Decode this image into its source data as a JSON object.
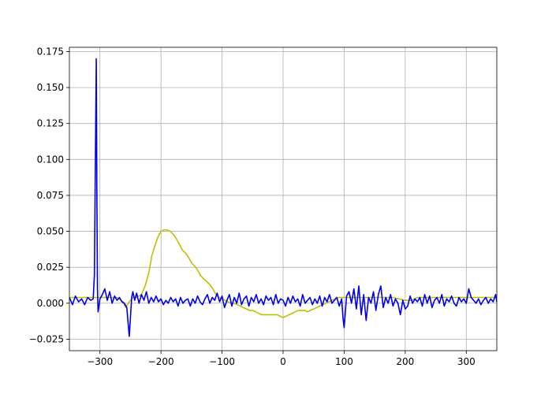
{
  "chart_data": {
    "type": "line",
    "title": "",
    "xlabel": "",
    "ylabel": "",
    "xlim": [
      -350,
      350
    ],
    "ylim": [
      -0.033,
      0.178
    ],
    "xticks": [
      -300,
      -200,
      -100,
      0,
      100,
      200,
      300
    ],
    "xtick_labels": [
      "−300",
      "−200",
      "−100",
      "0",
      "100",
      "200",
      "300"
    ],
    "yticks": [
      -0.025,
      0,
      0.025,
      0.05,
      0.075,
      0.1,
      0.125,
      0.15,
      0.175
    ],
    "ytick_labels": [
      "−0.025",
      "0.000",
      "0.025",
      "0.050",
      "0.075",
      "0.100",
      "0.125",
      "0.150",
      "0.175"
    ],
    "grid": true,
    "legend": "none",
    "series": [
      {
        "color": "#bfbf00",
        "x": [
          -350,
          -300,
          -272,
          -262,
          -258,
          -252,
          -246,
          -240,
          -232,
          -226,
          -220,
          -215,
          -210,
          -205,
          -200,
          -195,
          -190,
          -185,
          -180,
          -175,
          -170,
          -165,
          -160,
          -155,
          -150,
          -145,
          -140,
          -135,
          -130,
          -125,
          -120,
          -115,
          -110,
          -105,
          -100,
          -95,
          -90,
          -85,
          -80,
          -75,
          -70,
          -65,
          -60,
          -55,
          -50,
          -45,
          -40,
          -35,
          -30,
          -25,
          -20,
          -15,
          -10,
          -5,
          0,
          5,
          10,
          15,
          20,
          25,
          30,
          35,
          40,
          45,
          50,
          55,
          60,
          65,
          70,
          75,
          80,
          85,
          90,
          95,
          100,
          150,
          160,
          170,
          180,
          190,
          200,
          205,
          210,
          215,
          220,
          350
        ],
        "y": [
          0.004,
          0.004,
          0.004,
          0.001,
          -0.003,
          0.001,
          0.004,
          0.004,
          0.006,
          0.012,
          0.021,
          0.033,
          0.04,
          0.046,
          0.05,
          0.051,
          0.051,
          0.05,
          0.048,
          0.045,
          0.041,
          0.037,
          0.035,
          0.032,
          0.028,
          0.026,
          0.023,
          0.019,
          0.017,
          0.015,
          0.013,
          0.01,
          0.006,
          0.004,
          0.003,
          0.002,
          0.001,
          0.0,
          0.0,
          -0.001,
          -0.002,
          -0.003,
          -0.004,
          -0.005,
          -0.005,
          -0.006,
          -0.007,
          -0.008,
          -0.008,
          -0.008,
          -0.008,
          -0.008,
          -0.008,
          -0.009,
          -0.01,
          -0.009,
          -0.008,
          -0.007,
          -0.006,
          -0.005,
          -0.005,
          -0.005,
          -0.006,
          -0.005,
          -0.004,
          -0.003,
          -0.002,
          -0.001,
          0.0,
          0.001,
          0.002,
          0.003,
          0.004,
          0.004,
          0.004,
          0.004,
          0.004,
          0.004,
          0.004,
          0.003,
          0.002,
          0.002,
          0.002,
          0.003,
          0.004,
          0.004
        ]
      },
      {
        "color": "#0000ee",
        "x": [
          -350,
          -345,
          -340,
          -335,
          -330,
          -325,
          -320,
          -315,
          -311,
          -309,
          -307,
          -306,
          -305,
          -304,
          -303,
          -302,
          -300,
          -296,
          -292,
          -288,
          -284,
          -280,
          -276,
          -272,
          -268,
          -264,
          -260,
          -256,
          -252,
          -250,
          -248,
          -246,
          -243,
          -240,
          -236,
          -232,
          -228,
          -224,
          -220,
          -216,
          -212,
          -208,
          -204,
          -200,
          -196,
          -192,
          -188,
          -184,
          -180,
          -176,
          -172,
          -168,
          -164,
          -160,
          -156,
          -152,
          -148,
          -144,
          -140,
          -136,
          -132,
          -128,
          -124,
          -120,
          -116,
          -112,
          -108,
          -104,
          -100,
          -96,
          -92,
          -88,
          -84,
          -80,
          -76,
          -72,
          -68,
          -64,
          -60,
          -56,
          -52,
          -48,
          -44,
          -40,
          -36,
          -32,
          -28,
          -24,
          -20,
          -16,
          -12,
          -8,
          -4,
          0,
          4,
          8,
          12,
          16,
          20,
          24,
          28,
          32,
          36,
          40,
          44,
          48,
          52,
          56,
          60,
          64,
          68,
          72,
          76,
          80,
          84,
          88,
          92,
          96,
          98,
          100,
          104,
          108,
          112,
          116,
          120,
          124,
          128,
          132,
          136,
          140,
          144,
          148,
          152,
          156,
          160,
          164,
          168,
          172,
          176,
          180,
          184,
          188,
          192,
          196,
          200,
          204,
          208,
          212,
          216,
          220,
          224,
          228,
          232,
          236,
          240,
          244,
          248,
          252,
          256,
          260,
          264,
          268,
          272,
          276,
          280,
          284,
          288,
          292,
          296,
          300,
          304,
          308,
          312,
          316,
          320,
          324,
          328,
          332,
          336,
          340,
          344,
          348,
          350
        ],
        "y": [
          0.004,
          -0.001,
          0.005,
          0.001,
          0.003,
          -0.001,
          0.004,
          0.002,
          0.003,
          0.02,
          0.12,
          0.17,
          0.08,
          0.01,
          -0.006,
          -0.003,
          0.003,
          0.006,
          0.01,
          0.002,
          0.008,
          0.0,
          0.005,
          0.002,
          0.004,
          0.001,
          0.0,
          -0.003,
          -0.023,
          -0.01,
          0.004,
          0.008,
          0.002,
          0.007,
          0.0,
          0.006,
          0.002,
          0.008,
          0.0,
          0.004,
          0.001,
          0.005,
          0.001,
          0.003,
          -0.001,
          0.002,
          0.0,
          0.004,
          0.001,
          0.003,
          -0.002,
          0.004,
          0.0,
          0.002,
          0.003,
          -0.002,
          0.003,
          0.0,
          0.005,
          0.001,
          -0.001,
          0.003,
          0.006,
          0.0,
          0.004,
          0.002,
          0.007,
          0.001,
          0.005,
          -0.003,
          0.002,
          0.006,
          -0.002,
          0.004,
          0.0,
          0.007,
          -0.001,
          0.003,
          0.005,
          -0.002,
          0.004,
          0.001,
          0.006,
          0.0,
          0.003,
          -0.001,
          0.005,
          0.002,
          0.004,
          -0.001,
          0.006,
          0.0,
          0.003,
          0.002,
          -0.002,
          0.004,
          0.0,
          0.005,
          0.001,
          0.003,
          -0.002,
          0.006,
          0.0,
          0.002,
          0.004,
          -0.001,
          0.003,
          0.0,
          0.005,
          -0.002,
          0.004,
          0.001,
          0.006,
          0.0,
          0.002,
          0.004,
          -0.002,
          0.003,
          -0.01,
          -0.017,
          0.005,
          0.008,
          0.0,
          0.01,
          -0.004,
          0.012,
          -0.008,
          0.006,
          -0.012,
          0.004,
          0.0,
          0.008,
          -0.005,
          0.006,
          0.012,
          -0.003,
          0.004,
          0.0,
          0.006,
          -0.002,
          0.003,
          0.0,
          -0.008,
          0.002,
          -0.004,
          -0.002,
          0.005,
          0.0,
          0.003,
          0.001,
          0.004,
          -0.002,
          0.006,
          0.0,
          0.005,
          -0.003,
          0.002,
          0.004,
          0.0,
          0.006,
          -0.002,
          0.003,
          0.001,
          0.005,
          0.0,
          -0.002,
          0.004,
          0.001,
          0.003,
          0.0,
          0.01,
          0.004,
          0.002,
          0.0,
          0.003,
          -0.001,
          0.002,
          0.004,
          0.0,
          0.003,
          0.001,
          0.006,
          0.001
        ]
      }
    ]
  }
}
